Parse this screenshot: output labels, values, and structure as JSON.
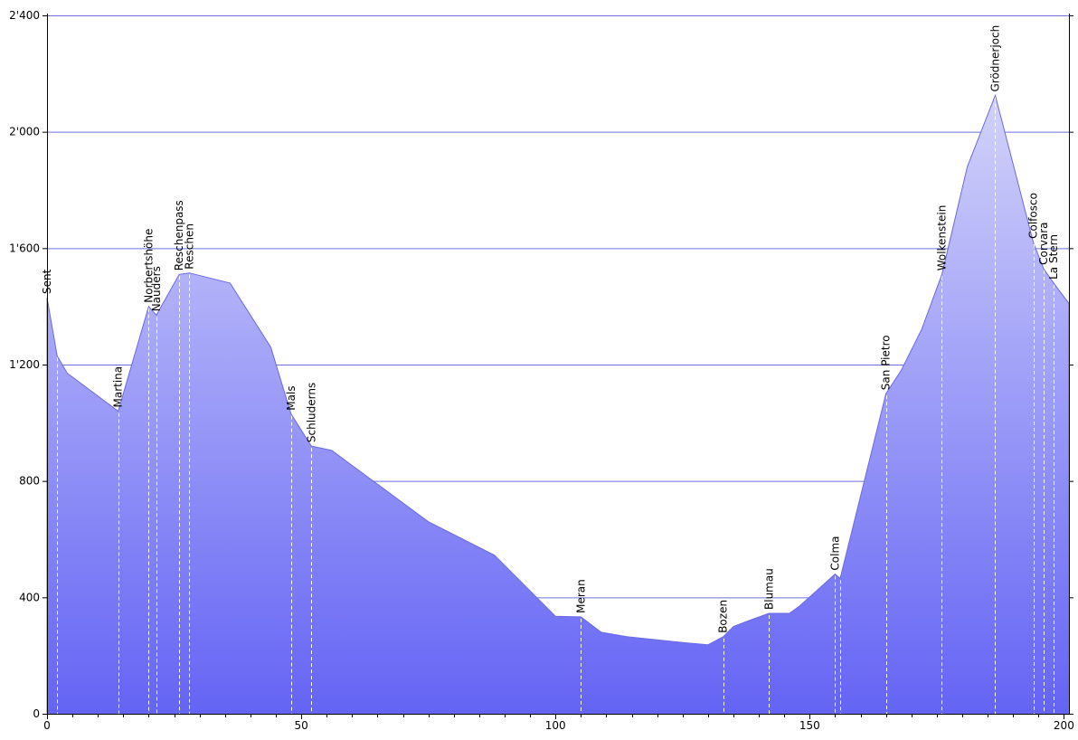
{
  "chart_data": {
    "type": "area",
    "title": "",
    "xlabel": "",
    "ylabel": "",
    "xlim": [
      0,
      201
    ],
    "ylim": [
      0,
      2400
    ],
    "grid": true,
    "colors": {
      "fill_top": "#d2d2fa",
      "fill_bottom": "#6464f5",
      "grid": "#6b72e0",
      "outline": "#6a6ae6"
    },
    "x_ticks": [
      0,
      50,
      100,
      150,
      200
    ],
    "x_tick_labels": [
      "0",
      "50",
      "100",
      "150",
      "200"
    ],
    "y_ticks": [
      0,
      400,
      800,
      1200,
      1600,
      2000,
      2400
    ],
    "y_tick_labels": [
      "0",
      "400",
      "800",
      "1'200",
      "1'600",
      "2'000",
      "2'400"
    ],
    "profile": [
      [
        0,
        1430
      ],
      [
        2,
        1230
      ],
      [
        4,
        1170
      ],
      [
        14,
        1040
      ],
      [
        20,
        1400
      ],
      [
        21.5,
        1370
      ],
      [
        26,
        1510
      ],
      [
        28,
        1515
      ],
      [
        36,
        1480
      ],
      [
        44,
        1260
      ],
      [
        48,
        1030
      ],
      [
        52,
        920
      ],
      [
        56,
        905
      ],
      [
        75,
        660
      ],
      [
        88,
        545
      ],
      [
        100,
        335
      ],
      [
        105,
        333
      ],
      [
        109,
        280
      ],
      [
        114,
        265
      ],
      [
        125,
        245
      ],
      [
        130,
        237
      ],
      [
        133,
        265
      ],
      [
        135,
        300
      ],
      [
        138,
        320
      ],
      [
        142,
        345
      ],
      [
        146,
        345
      ],
      [
        148,
        370
      ],
      [
        155,
        480
      ],
      [
        156,
        465
      ],
      [
        165,
        1100
      ],
      [
        168,
        1180
      ],
      [
        172,
        1320
      ],
      [
        176,
        1510
      ],
      [
        181,
        1880
      ],
      [
        186.5,
        2125
      ],
      [
        190,
        1890
      ],
      [
        194,
        1620
      ],
      [
        196,
        1530
      ],
      [
        198,
        1480
      ],
      [
        201,
        1410
      ]
    ],
    "places": [
      {
        "name": "Sent",
        "km": 0,
        "elev": 1430
      },
      {
        "name": "Martina",
        "km": 14,
        "elev": 1040
      },
      {
        "name": "Norbertshöhe",
        "km": 20,
        "elev": 1400
      },
      {
        "name": "Nauders",
        "km": 21.5,
        "elev": 1370
      },
      {
        "name": "Reschenpass",
        "km": 26,
        "elev": 1510
      },
      {
        "name": "Reschen",
        "km": 28,
        "elev": 1515
      },
      {
        "name": "Mals",
        "km": 48,
        "elev": 1030
      },
      {
        "name": "Schluderns",
        "km": 52,
        "elev": 920
      },
      {
        "name": "Meran",
        "km": 105,
        "elev": 333
      },
      {
        "name": "Bozen",
        "km": 133,
        "elev": 265
      },
      {
        "name": "Blumau",
        "km": 142,
        "elev": 345
      },
      {
        "name": "Colma",
        "km": 155,
        "elev": 480
      },
      {
        "name": "San Pietro",
        "km": 165,
        "elev": 1100
      },
      {
        "name": "Wolkenstein",
        "km": 176,
        "elev": 1510
      },
      {
        "name": "Grödnerjoch",
        "km": 186.5,
        "elev": 2125
      },
      {
        "name": "Colfosco",
        "km": 194,
        "elev": 1620
      },
      {
        "name": "Corvara",
        "km": 196,
        "elev": 1530
      },
      {
        "name": "La Stern",
        "km": 198,
        "elev": 1480
      }
    ],
    "extra_drop_lines_km": [
      2,
      156
    ]
  }
}
